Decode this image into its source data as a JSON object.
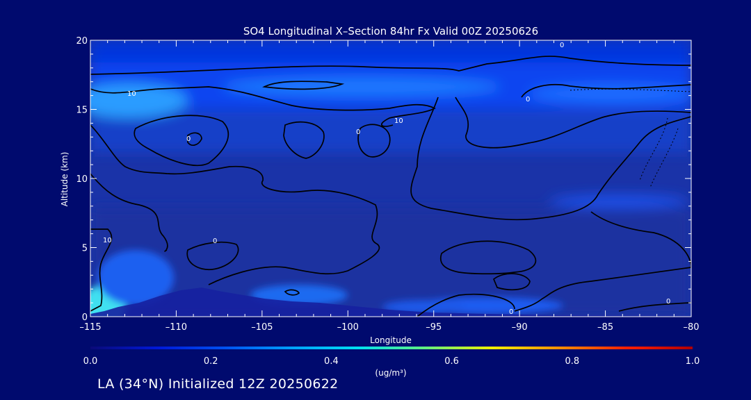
{
  "chart_data": {
    "type": "heatmap",
    "title": "SO4 Longitudinal X–Section 84hr  Fx Valid 00Z 20250626",
    "xlabel": "Longitude",
    "ylabel": "Altitude (km)",
    "xlim": [
      -115,
      -80
    ],
    "ylim": [
      0,
      20
    ],
    "x_ticks": [
      -115,
      -110,
      -105,
      -100,
      -95,
      -90,
      -85,
      -80
    ],
    "x_tick_labels": [
      "–115",
      "–110",
      "–105",
      "–100",
      "–95",
      "–90",
      "–85",
      "–80"
    ],
    "y_ticks": [
      0,
      5,
      10,
      15,
      20
    ],
    "y_tick_labels": [
      "0",
      "5",
      "10",
      "15",
      "20"
    ],
    "colorbar": {
      "min": 0.0,
      "max": 1.0,
      "ticks": [
        "0.0",
        "0.2",
        "0.4",
        "0.6",
        "0.8",
        "1.0"
      ],
      "unit": "(ug/m³)",
      "colors": [
        "#0a0a78",
        "#0018d8",
        "#0050f0",
        "#00a0ff",
        "#00e0f0",
        "#60f080",
        "#f0f000",
        "#ff9000",
        "#ff2000",
        "#b00000"
      ]
    },
    "contour_labels": [
      "0",
      "10",
      "0",
      "0",
      "10",
      "0",
      "0",
      "10",
      "0",
      "0"
    ],
    "grid": false
  },
  "footer": {
    "caption": "LA (34°N) Initialized 12Z 20250622"
  }
}
